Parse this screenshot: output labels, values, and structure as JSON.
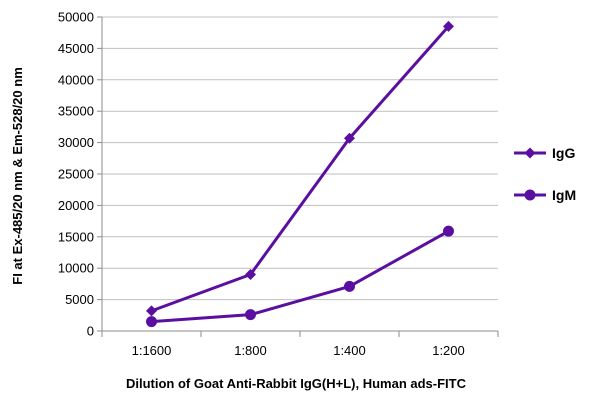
{
  "chart_data": {
    "type": "line",
    "categories": [
      "1:1600",
      "1:800",
      "1:400",
      "1:200"
    ],
    "series": [
      {
        "name": "IgG",
        "values": [
          3200,
          9000,
          30700,
          48500
        ],
        "marker": "diamond",
        "color": "#5b0fa0"
      },
      {
        "name": "IgM",
        "values": [
          1500,
          2600,
          7100,
          15900
        ],
        "marker": "circle",
        "color": "#5b0fa0"
      }
    ],
    "title": "",
    "xlabel": "Dilution of Goat Anti-Rabbit IgG(H+L), Human ads-FITC",
    "ylabel": "FI at Ex-485/20 nm & Em-528/20 nm",
    "ylim": [
      0,
      50000
    ],
    "yticks": [
      0,
      5000,
      10000,
      15000,
      20000,
      25000,
      30000,
      35000,
      40000,
      45000,
      50000
    ],
    "grid": true,
    "legend": "right",
    "colors": {
      "series": "#5b0fa0",
      "grid": "#bfbfbf",
      "axis": "#8c8c8c"
    }
  }
}
